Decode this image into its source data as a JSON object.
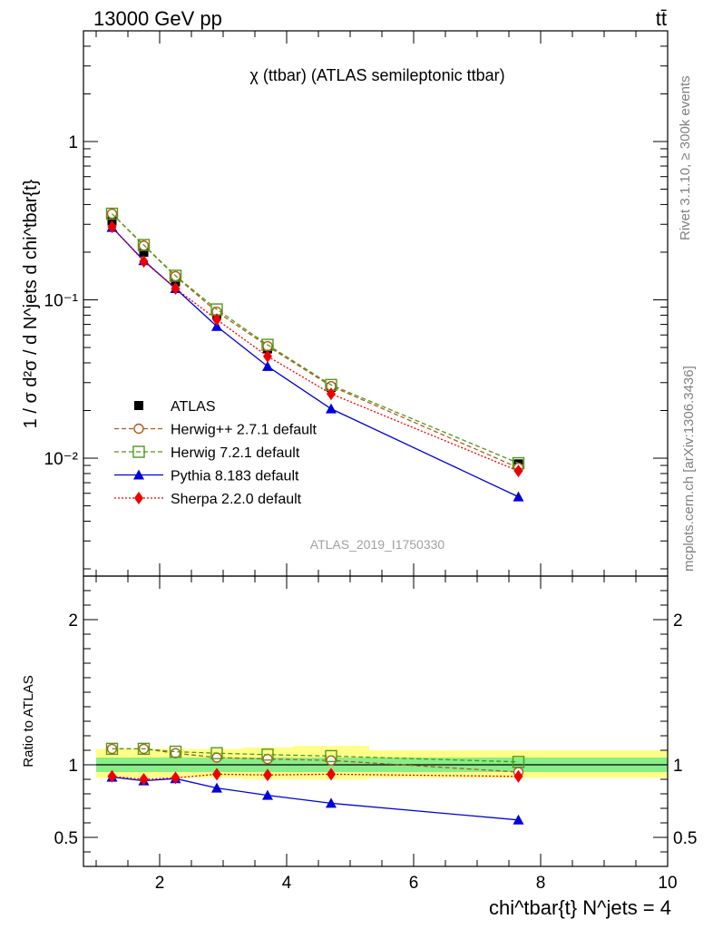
{
  "header": {
    "energy_label": "13000 GeV pp",
    "process_label": "tt̄",
    "side_rivet": "Rivet 3.1.10, ≥ 300k events",
    "side_site": "mcplots.cern.ch [arXiv:1306.3436]"
  },
  "chart_data": [
    {
      "type": "line",
      "panel": "main",
      "title": "χ (ttbar) (ATLAS semileptonic ttbar)",
      "ylabel": "1 / σ d²σ / d N^jets d chi^tbar{t}",
      "yscale": "log",
      "ylim": [
        0.0018,
        5.0
      ],
      "xlim": [
        0.8,
        10
      ],
      "watermark": "ATLAS_2019_I1750330",
      "y_ticks": [
        {
          "v": 0.01,
          "label": "10⁻²"
        },
        {
          "v": 0.1,
          "label": "10⁻¹"
        },
        {
          "v": 1,
          "label": "1"
        }
      ],
      "x": [
        1.25,
        1.75,
        2.25,
        2.9,
        3.7,
        4.7,
        7.65
      ],
      "series": [
        {
          "name": "ATLAS",
          "color": "#000000",
          "style": "data",
          "values": [
            0.315,
            0.2,
            0.13,
            0.081,
            0.049,
            0.028,
            0.0092
          ]
        },
        {
          "name": "Herwig++ 2.7.1 default",
          "color": "#b55a1c",
          "style": "dashed",
          "marker": "open-circle",
          "values": [
            0.35,
            0.22,
            0.141,
            0.084,
            0.051,
            0.0285,
            0.0087
          ]
        },
        {
          "name": "Herwig 7.2.1 default",
          "color": "#4c9a18",
          "style": "dashed",
          "marker": "open-square",
          "values": [
            0.35,
            0.222,
            0.142,
            0.087,
            0.052,
            0.029,
            0.0093
          ]
        },
        {
          "name": "Pythia 8.183 default",
          "color": "#0000dd",
          "style": "solid",
          "marker": "triangle",
          "values": [
            0.287,
            0.177,
            0.118,
            0.068,
            0.038,
            0.0205,
            0.0057
          ]
        },
        {
          "name": "Sherpa 2.2.0 default",
          "color": "#ee0000",
          "style": "dotted",
          "marker": "diamond",
          "values": [
            0.289,
            0.175,
            0.118,
            0.075,
            0.044,
            0.0255,
            0.0083
          ]
        }
      ]
    },
    {
      "type": "line",
      "panel": "ratio",
      "ylabel": "Ratio to ATLAS",
      "xlabel": "chi^tbar{t} N^jets = 4",
      "ylim": [
        0.3,
        2.3
      ],
      "xlim": [
        0.8,
        10
      ],
      "x_ticks": [
        2,
        4,
        6,
        8,
        10
      ],
      "y_ticks": [
        0.5,
        1,
        2
      ],
      "x_edges": [
        1.0,
        1.5,
        2.0,
        2.5,
        3.3,
        4.1,
        5.3,
        10.0
      ],
      "band_inner": [
        [
          0.95,
          1.05
        ],
        [
          0.95,
          1.05
        ],
        [
          0.95,
          1.05
        ],
        [
          0.95,
          1.05
        ],
        [
          0.95,
          1.05
        ],
        [
          0.95,
          1.05
        ],
        [
          0.95,
          1.05
        ]
      ],
      "band_outer": [
        [
          0.91,
          1.11
        ],
        [
          0.91,
          1.11
        ],
        [
          0.91,
          1.11
        ],
        [
          0.91,
          1.11
        ],
        [
          0.9,
          1.12
        ],
        [
          0.9,
          1.13
        ],
        [
          0.91,
          1.1
        ]
      ],
      "x": [
        1.25,
        1.75,
        2.25,
        2.9,
        3.7,
        4.7,
        7.65
      ],
      "series": [
        {
          "name": "Herwig++ 2.7.1 default",
          "color": "#b55a1c",
          "style": "dashed",
          "marker": "open-circle",
          "values": [
            1.11,
            1.11,
            1.08,
            1.05,
            1.04,
            1.03,
            0.95
          ]
        },
        {
          "name": "Herwig 7.2.1 default",
          "color": "#4c9a18",
          "style": "dashed",
          "marker": "open-square",
          "values": [
            1.11,
            1.11,
            1.09,
            1.08,
            1.07,
            1.06,
            1.02
          ]
        },
        {
          "name": "Pythia 8.183 default",
          "color": "#0000dd",
          "style": "solid",
          "marker": "triangle",
          "values": [
            0.915,
            0.89,
            0.905,
            0.84,
            0.79,
            0.735,
            0.62
          ],
          "errors": [
            0.008,
            0.01,
            0.01,
            0.012,
            0.018,
            0.025,
            0.02
          ]
        },
        {
          "name": "Sherpa 2.2.0 default",
          "color": "#ee0000",
          "style": "dotted",
          "marker": "diamond",
          "values": [
            0.92,
            0.9,
            0.91,
            0.935,
            0.93,
            0.935,
            0.92
          ]
        }
      ]
    }
  ]
}
